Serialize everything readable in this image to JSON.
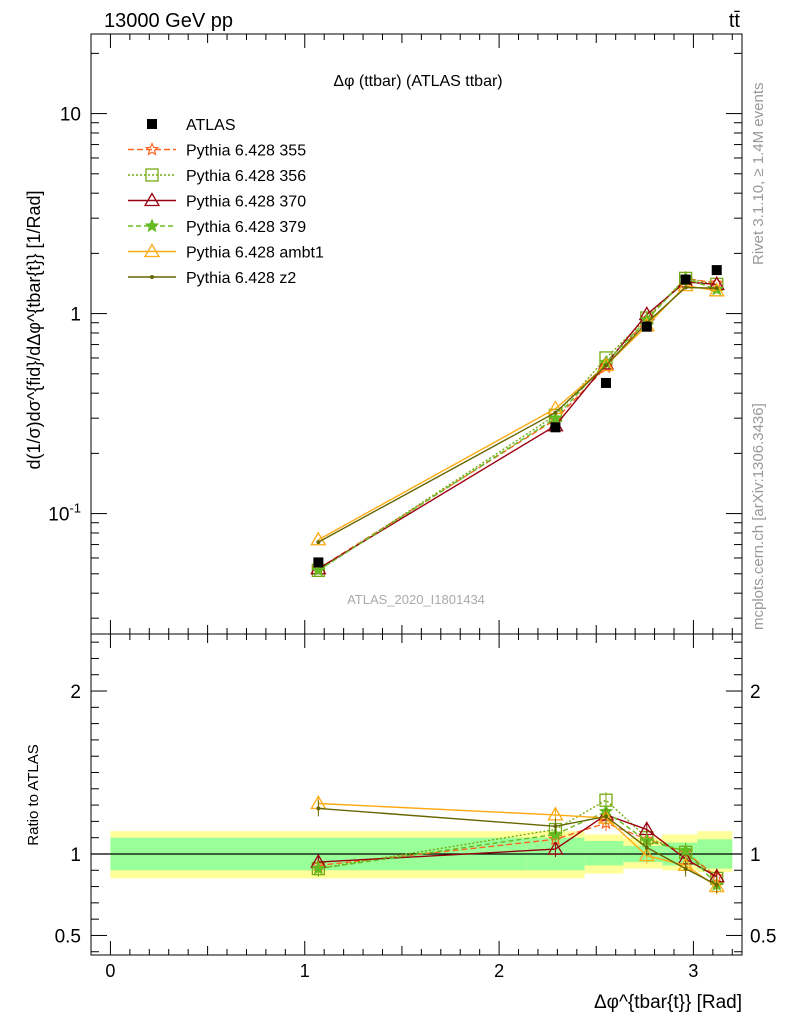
{
  "header": {
    "energy_label": "13000 GeV pp",
    "process_label": "tt̄"
  },
  "side_labels": {
    "rivet": "Rivet 3.1.10, ≥ 1.4M events",
    "mcplots": "mcplots.cern.ch [arXiv:1306.3436]"
  },
  "chart_data": {
    "type": "line",
    "title": "Δφ (ttbar) (ATLAS ttbar)",
    "analysis_id": "ATLAS_2020_I1801434",
    "xlabel": "Δφ^{tbar{t}} [Rad]",
    "ylabel": "d(1/σ)dσ^{fid}/dΔφ^{tbar{t}} [1/Rad]",
    "ratio_ylabel": "Ratio to ATLAS",
    "xlim": [
      -0.1,
      3.25
    ],
    "ylim": [
      0.025,
      25
    ],
    "ylog": true,
    "ratio_ylim": [
      0.38,
      2.35
    ],
    "x_ticks": [
      "0",
      "1",
      "2",
      "3"
    ],
    "y_ticks": [
      "10^-1",
      "1",
      "10"
    ],
    "ratio_ticks": [
      "0.5",
      "1",
      "2"
    ],
    "legend_position": "top-left",
    "data": {
      "name": "ATLAS",
      "color": "#000000",
      "x": [
        1.07,
        2.29,
        2.55,
        2.76,
        2.96,
        3.12
      ],
      "y": [
        0.057,
        0.27,
        0.45,
        0.86,
        1.48,
        1.65
      ]
    },
    "bands": {
      "edges": [
        0.0,
        2.14,
        2.44,
        2.64,
        2.84,
        3.02,
        3.2
      ],
      "green": [
        [
          0.9,
          1.1
        ],
        [
          0.9,
          1.1
        ],
        [
          0.93,
          1.08
        ],
        [
          0.95,
          1.05
        ],
        [
          0.93,
          1.07
        ],
        [
          0.91,
          1.09
        ]
      ],
      "yellow": [
        [
          0.85,
          1.14
        ],
        [
          0.85,
          1.14
        ],
        [
          0.88,
          1.12
        ],
        [
          0.91,
          1.1
        ],
        [
          0.9,
          1.12
        ],
        [
          0.89,
          1.14
        ]
      ],
      "green_color": "#99ff99",
      "yellow_color": "#ffff99"
    },
    "series": [
      {
        "name": "Pythia 6.428 355",
        "color": "#ff6622",
        "dash": "6,3",
        "marker": "star",
        "x": [
          1.07,
          2.29,
          2.55,
          2.76,
          2.96,
          3.12
        ],
        "y": [
          0.053,
          0.295,
          0.54,
          0.94,
          1.5,
          1.42
        ],
        "ratio": [
          0.93,
          1.09,
          1.19,
          1.09,
          1.01,
          0.86
        ]
      },
      {
        "name": "Pythia 6.428 356",
        "color": "#77aa11",
        "dash": "2,2",
        "marker": "square",
        "x": [
          1.07,
          2.29,
          2.55,
          2.76,
          2.96,
          3.12
        ],
        "y": [
          0.052,
          0.31,
          0.6,
          0.95,
          1.5,
          1.4
        ],
        "ratio": [
          0.91,
          1.15,
          1.33,
          1.1,
          1.01,
          0.85
        ]
      },
      {
        "name": "Pythia 6.428 370",
        "color": "#990011",
        "dash": "",
        "marker": "triangle",
        "x": [
          1.07,
          2.29,
          2.55,
          2.76,
          2.96,
          3.12
        ],
        "y": [
          0.053,
          0.275,
          0.56,
          0.99,
          1.44,
          1.4
        ],
        "ratio": [
          0.95,
          1.03,
          1.24,
          1.15,
          0.97,
          0.86
        ]
      },
      {
        "name": "Pythia 6.428 379",
        "color": "#66bb22",
        "dash": "5,3",
        "marker": "star-filled",
        "x": [
          1.07,
          2.29,
          2.55,
          2.76,
          2.96,
          3.12
        ],
        "y": [
          0.052,
          0.3,
          0.57,
          0.93,
          1.5,
          1.32
        ],
        "ratio": [
          0.91,
          1.12,
          1.26,
          1.08,
          1.02,
          0.81
        ]
      },
      {
        "name": "Pythia 6.428 ambt1",
        "color": "#ffaa11",
        "dash": "",
        "marker": "triangle",
        "x": [
          1.07,
          2.29,
          2.55,
          2.76,
          2.96,
          3.12
        ],
        "y": [
          0.074,
          0.335,
          0.55,
          0.87,
          1.38,
          1.3
        ],
        "ratio": [
          1.31,
          1.24,
          1.22,
          0.99,
          0.93,
          0.8
        ]
      },
      {
        "name": "Pythia 6.428 z2",
        "color": "#666600",
        "dash": "",
        "marker": "dot",
        "x": [
          1.07,
          2.29,
          2.55,
          2.76,
          2.96,
          3.12
        ],
        "y": [
          0.072,
          0.32,
          0.55,
          0.9,
          1.35,
          1.34
        ],
        "ratio": [
          1.28,
          1.17,
          1.23,
          1.04,
          0.91,
          0.81
        ]
      }
    ]
  }
}
